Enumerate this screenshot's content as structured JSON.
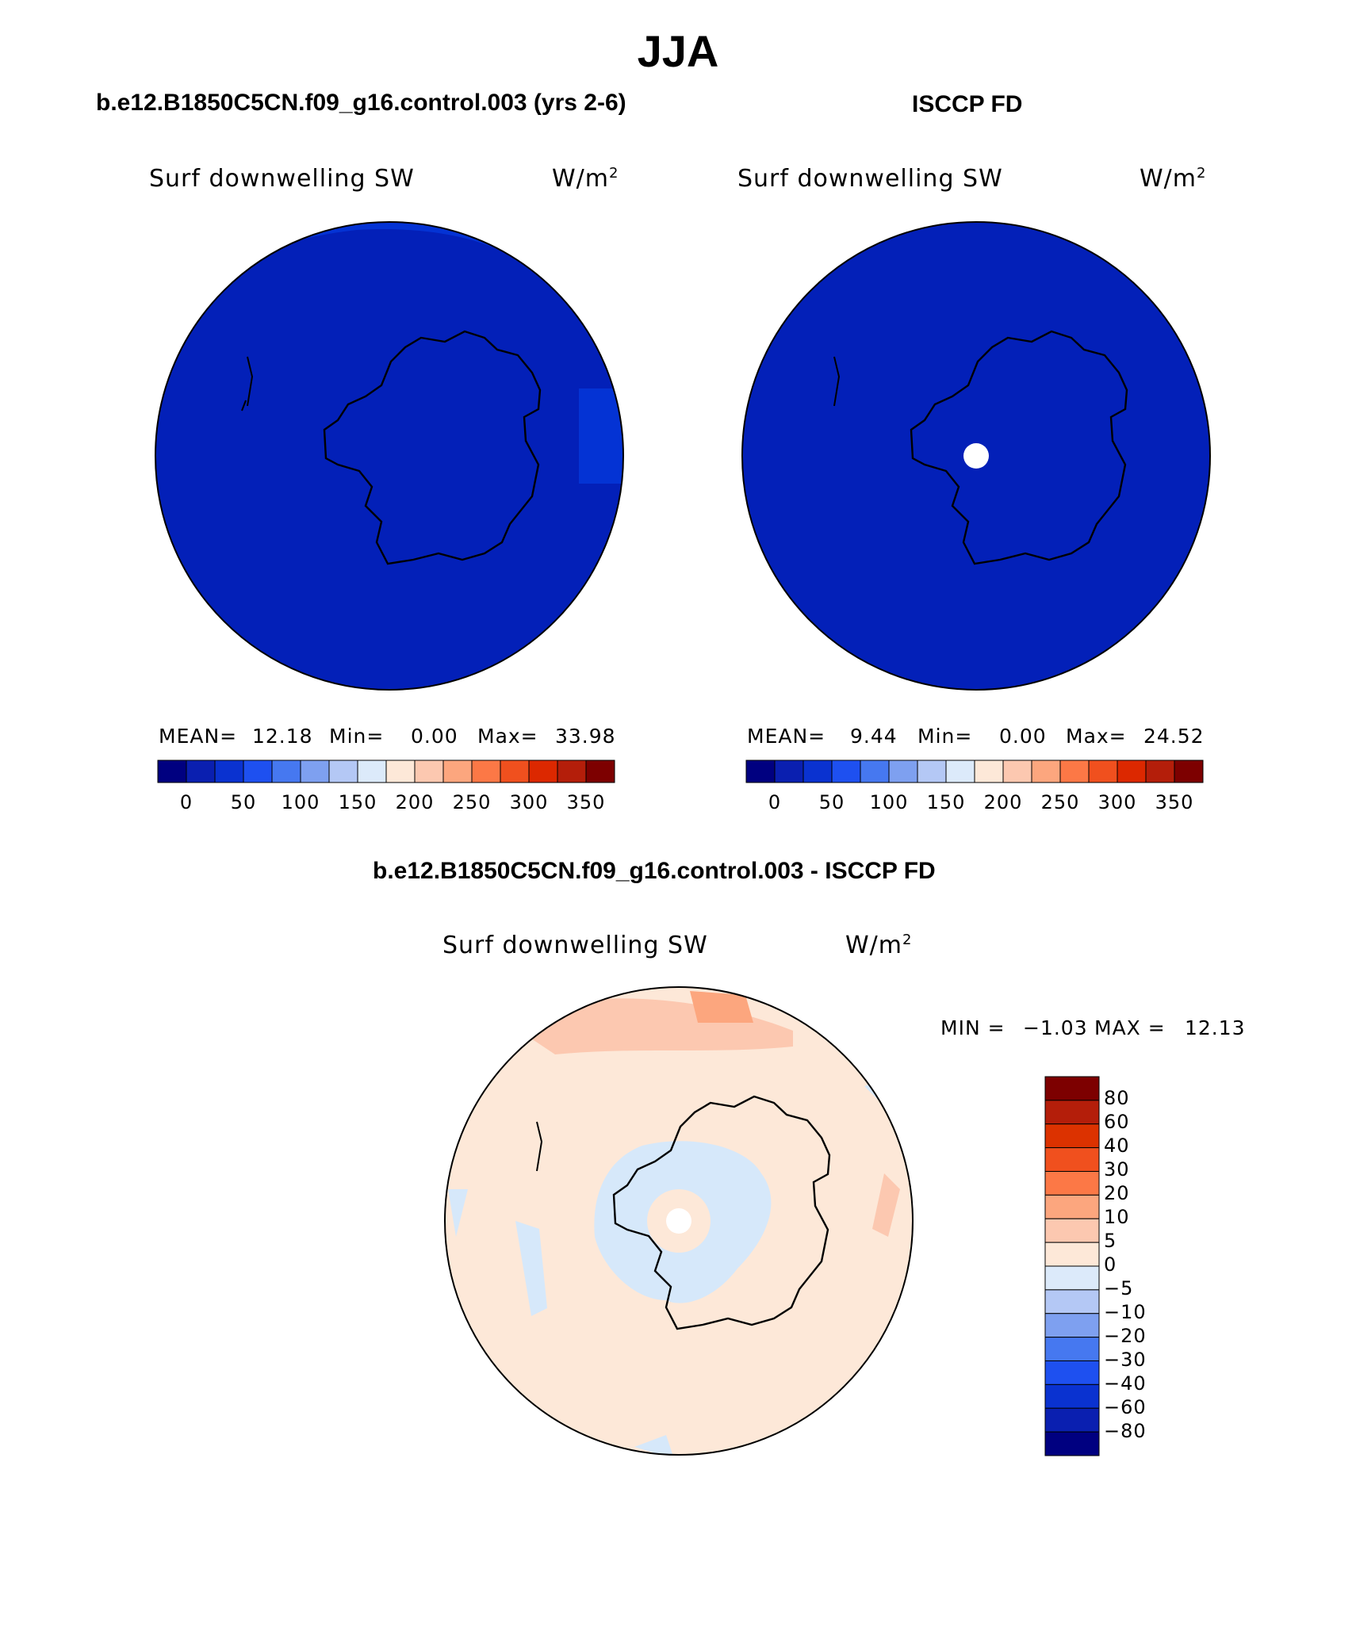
{
  "title": "JJA",
  "colors": {
    "abs_scale": [
      "#000080",
      "#0a1fb0",
      "#0a32d0",
      "#1e50f0",
      "#4678f0",
      "#7ea0f0",
      "#b4c8f5",
      "#dceafa",
      "#fde8d8",
      "#fcc8b0",
      "#fca67e",
      "#fc7846",
      "#f0501e",
      "#dc2800",
      "#b41e0a",
      "#7d0000"
    ],
    "diff_scale": [
      "#7d0000",
      "#b41e0a",
      "#dc3200",
      "#f0501e",
      "#fc7846",
      "#fca67e",
      "#fcc8b0",
      "#fde8d8",
      "#dceafa",
      "#b4c8f5",
      "#7ea0f0",
      "#4678f0",
      "#1e50f0",
      "#0a32d0",
      "#0a1fb0",
      "#000080"
    ],
    "map_model_main": "#0320b8",
    "map_model_outer": "#0433d4",
    "map_obs_main": "#0320b8",
    "diff_main": "#fde8d8",
    "diff_pos": "#fcc8b0",
    "diff_neg": "#d6e8fa"
  },
  "panels": [
    {
      "title": "b.e12.B1850C5CN.f09_g16.control.003 (yrs 2-6)",
      "variable": "Surf downwelling SW",
      "units": "W/m",
      "units_sup": "2",
      "stats": {
        "mean_label": "MEAN=",
        "mean": "12.18",
        "min_label": "Min=",
        "min": "0.00",
        "max_label": "Max=",
        "max": "33.98"
      },
      "colorbar_ticks": [
        "0",
        "50",
        "100",
        "150",
        "200",
        "250",
        "300",
        "350"
      ]
    },
    {
      "title": "ISCCP FD",
      "variable": "Surf downwelling SW",
      "units": "W/m",
      "units_sup": "2",
      "stats": {
        "mean_label": "MEAN=",
        "mean": "9.44",
        "min_label": "Min=",
        "min": "0.00",
        "max_label": "Max=",
        "max": "24.52"
      },
      "colorbar_ticks": [
        "0",
        "50",
        "100",
        "150",
        "200",
        "250",
        "300",
        "350"
      ]
    }
  ],
  "difference": {
    "title": "b.e12.B1850C5CN.f09_g16.control.003 - ISCCP FD",
    "variable": "Surf downwelling SW",
    "units": "W/m",
    "units_sup": "2",
    "stats": {
      "min_label": "MIN =",
      "min": "−1.03",
      "max_label": "MAX =",
      "max": "12.13"
    },
    "colorbar_ticks": [
      "80",
      "60",
      "40",
      "30",
      "20",
      "10",
      "5",
      "0",
      "−5",
      "−10",
      "−20",
      "−30",
      "−40",
      "−60",
      "−80"
    ]
  }
}
